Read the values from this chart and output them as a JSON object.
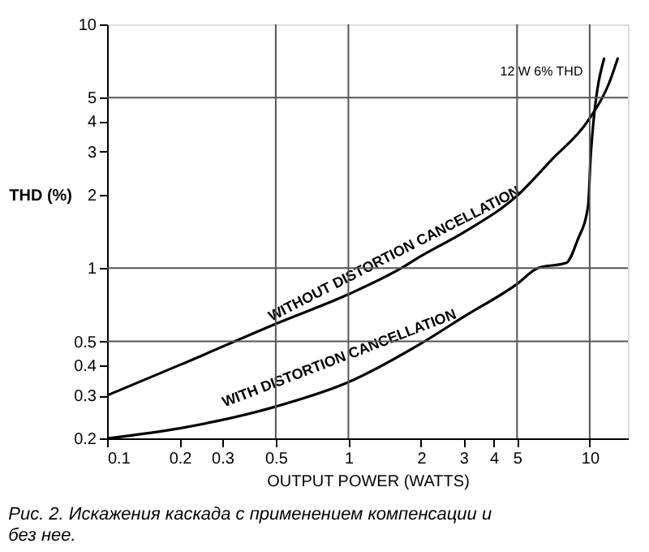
{
  "chart_data": {
    "type": "line",
    "xlabel": "OUTPUT POWER (WATTS)",
    "ylabel": "THD (%)",
    "log": "xy",
    "xlim": [
      0.1,
      14.4
    ],
    "ylim": [
      0.2,
      10
    ],
    "xticks": [
      0.1,
      0.2,
      0.3,
      0.5,
      1,
      2,
      3,
      4,
      5,
      10
    ],
    "yticks": [
      0.2,
      0.3,
      0.4,
      0.5,
      1,
      2,
      3,
      4,
      5,
      10
    ],
    "line_style": "solid",
    "marker": "none",
    "series": [
      {
        "name": "WITHOUT DISTORTION CANCELLATION",
        "color": "#000000",
        "x": [
          0.1,
          0.2,
          0.5,
          1,
          1.66,
          2,
          3,
          5,
          7,
          9.8,
          12,
          13.1
        ],
        "values": [
          0.3,
          0.4,
          0.59,
          0.78,
          1,
          1.12,
          1.4,
          1.98,
          2.8,
          4,
          5.7,
          7.3
        ]
      },
      {
        "name": "WITH DISTORTION CANCELLATION",
        "color": "#000000",
        "x": [
          0.1,
          0.2,
          0.5,
          1,
          2,
          3,
          5,
          6.1,
          8,
          8.9,
          9.85,
          10.1,
          11.5
        ],
        "values": [
          0.2,
          0.22,
          0.27,
          0.34,
          0.49,
          0.63,
          0.86,
          1.0,
          1.05,
          1.3,
          1.8,
          2.9,
          7.3
        ]
      }
    ],
    "ref_lines": [
      {
        "axis": "x",
        "value": 0.5,
        "color": "#555555"
      },
      {
        "axis": "x",
        "value": 1,
        "color": "#555555"
      },
      {
        "axis": "x",
        "value": 5,
        "color": "#555555"
      },
      {
        "axis": "x",
        "value": 10,
        "color": "#555555"
      },
      {
        "axis": "y",
        "value": 0.5,
        "color": "#555555"
      },
      {
        "axis": "y",
        "value": 1,
        "color": "#555555"
      },
      {
        "axis": "y",
        "value": 5,
        "color": "#555555"
      }
    ],
    "annotations": [
      {
        "text": "12 W  6% THD",
        "x": 12,
        "y": 6
      },
      "Рис. 2. Искажения каскада с применением компенсации и без нее."
    ]
  }
}
